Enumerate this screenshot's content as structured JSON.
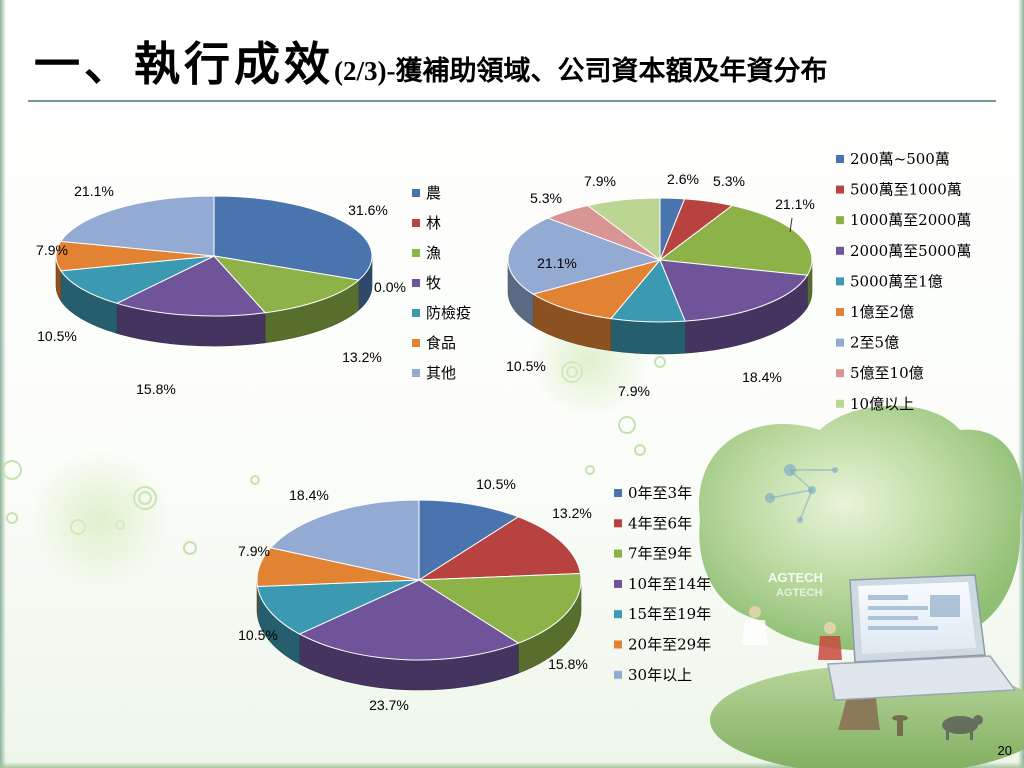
{
  "title": {
    "main": "一、執行成效",
    "num": "(2/3)-",
    "sub": "獲補助領域、公司資本額及年資分布"
  },
  "page_number": "20",
  "decor": {
    "illustration": "agtech-tree-laptop-farmers",
    "illustration_text": [
      "AGTECH",
      "AGTECH"
    ]
  },
  "chart_data": [
    {
      "type": "pie",
      "id": "domain",
      "title": "",
      "categories": [
        "農",
        "林",
        "漁",
        "牧",
        "防檢疫",
        "食品",
        "其他"
      ],
      "values": [
        31.6,
        0.0,
        13.2,
        15.8,
        10.5,
        7.9,
        21.1
      ],
      "labels": [
        "31.6%",
        "0.0%",
        "13.2%",
        "15.8%",
        "10.5%",
        "7.9%",
        "21.1%"
      ],
      "colors": [
        "#4a74ad",
        "#b8423f",
        "#8db247",
        "#6f549a",
        "#3b99b1",
        "#e28333",
        "#93aad3"
      ],
      "style": "3d",
      "legend": "right"
    },
    {
      "type": "pie",
      "id": "capital",
      "title": "",
      "categories": [
        "200萬~500萬",
        "500萬至1000萬",
        "1000萬至2000萬",
        "2000萬至5000萬",
        "5000萬至1億",
        "1億至2億",
        "2至5億",
        "5億至10億",
        "10億以上"
      ],
      "values": [
        2.6,
        5.3,
        21.1,
        18.4,
        7.9,
        10.5,
        21.1,
        5.3,
        7.9
      ],
      "labels": [
        "2.6%",
        "5.3%",
        "21.1%",
        "18.4%",
        "7.9%",
        "10.5%",
        "21.1%",
        "5.3%",
        "7.9%"
      ],
      "colors": [
        "#4a74ad",
        "#b8423f",
        "#8db247",
        "#6f549a",
        "#3b99b1",
        "#e28333",
        "#93aad3",
        "#d99594",
        "#bdd593"
      ],
      "style": "3d",
      "legend": "right"
    },
    {
      "type": "pie",
      "id": "years",
      "title": "",
      "categories": [
        "0年至3年",
        "4年至6年",
        "7年至9年",
        "10年至14年",
        "15年至19年",
        "20年至29年",
        "30年以上"
      ],
      "values": [
        10.5,
        13.2,
        15.8,
        23.7,
        10.5,
        7.9,
        18.4
      ],
      "labels": [
        "10.5%",
        "13.2%",
        "15.8%",
        "23.7%",
        "10.5%",
        "7.9%",
        "18.4%"
      ],
      "colors": [
        "#4a74ad",
        "#b8423f",
        "#8db247",
        "#6f549a",
        "#3b99b1",
        "#e28333",
        "#93aad3"
      ],
      "style": "3d",
      "legend": "right"
    }
  ]
}
